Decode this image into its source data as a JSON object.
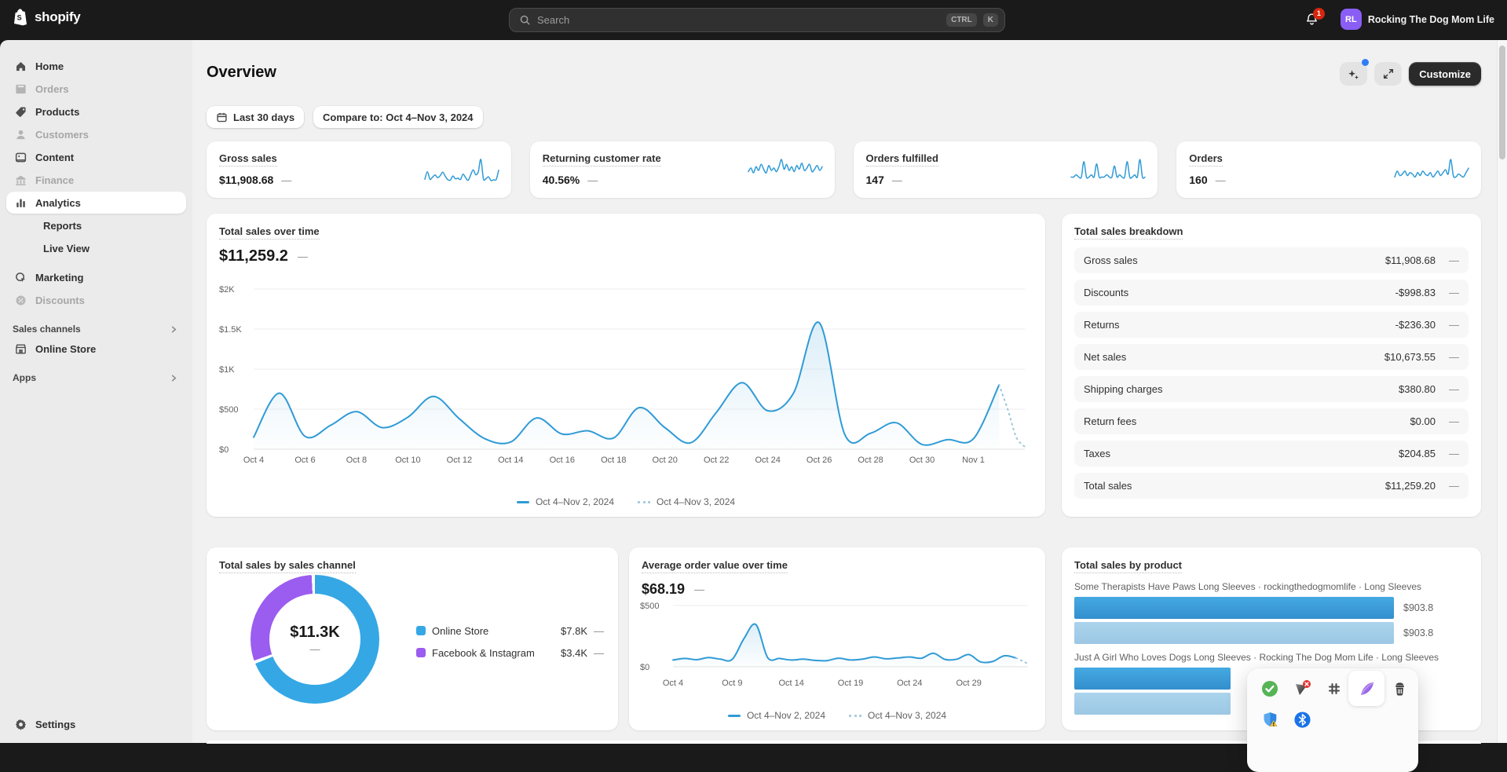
{
  "topbar": {
    "brand": "shopify",
    "search_placeholder": "Search",
    "shortcut_ctrl": "CTRL",
    "shortcut_k": "K",
    "notification_count": "1",
    "avatar_initials": "RL",
    "store_name": "Rocking The Dog Mom Life"
  },
  "sidebar": {
    "items": [
      {
        "label": "Home"
      },
      {
        "label": "Orders"
      },
      {
        "label": "Products"
      },
      {
        "label": "Customers"
      },
      {
        "label": "Content"
      },
      {
        "label": "Finance"
      },
      {
        "label": "Analytics"
      },
      {
        "label": "Reports"
      },
      {
        "label": "Live View"
      },
      {
        "label": "Marketing"
      },
      {
        "label": "Discounts"
      }
    ],
    "sales_channels_label": "Sales channels",
    "online_store_label": "Online Store",
    "apps_label": "Apps",
    "settings_label": "Settings"
  },
  "header": {
    "title": "Overview",
    "customize_label": "Customize"
  },
  "filters": {
    "date_range": "Last 30 days",
    "compare": "Compare to: Oct 4–Nov 3, 2024"
  },
  "metrics": [
    {
      "label": "Gross sales",
      "value": "$11,908.68",
      "trend": "—",
      "spark": [
        15,
        70,
        16,
        30,
        47,
        27,
        40,
        66,
        38,
        13,
        9,
        39,
        19,
        23,
        14,
        52,
        27,
        8,
        46,
        83,
        48,
        70,
        158,
        18,
        20,
        33,
        6,
        12,
        13,
        80
      ]
    },
    {
      "label": "Returning customer rate",
      "value": "40.56%",
      "trend": "—",
      "spark": [
        40,
        55,
        35,
        60,
        45,
        70,
        50,
        35,
        65,
        45,
        55,
        40,
        60,
        90,
        50,
        70,
        45,
        60,
        40,
        65,
        50,
        75,
        45,
        55,
        70,
        40,
        50,
        65,
        45,
        60
      ]
    },
    {
      "label": "Orders fulfilled",
      "value": "147",
      "trend": "—",
      "spark": [
        2,
        2,
        3,
        2,
        2,
        9,
        2,
        2,
        3,
        2,
        8,
        2,
        2,
        2,
        3,
        2,
        2,
        7,
        2,
        3,
        2,
        2,
        9,
        2,
        2,
        3,
        2,
        10,
        2,
        2
      ]
    },
    {
      "label": "Orders",
      "value": "160",
      "trend": "—",
      "spark": [
        3,
        7,
        4,
        5,
        7,
        4,
        6,
        5,
        3,
        6,
        4,
        7,
        5,
        4,
        6,
        3,
        5,
        7,
        4,
        6,
        8,
        5,
        15,
        4,
        3,
        5,
        4,
        3,
        6,
        9
      ]
    }
  ],
  "chart_data": {
    "sales_over_time": {
      "type": "line",
      "title": "Total sales over time",
      "value": "$11,259.2",
      "trend": "—",
      "y_max": 2000,
      "y_ticks": [
        {
          "label": "$2K",
          "v": 2000
        },
        {
          "label": "$1.5K",
          "v": 1500
        },
        {
          "label": "$1K",
          "v": 1000
        },
        {
          "label": "$500",
          "v": 500
        },
        {
          "label": "$0",
          "v": 0
        }
      ],
      "x_labels": [
        "Oct 4",
        "Oct 6",
        "Oct 8",
        "Oct 10",
        "Oct 12",
        "Oct 14",
        "Oct 16",
        "Oct 18",
        "Oct 20",
        "Oct 22",
        "Oct 24",
        "Oct 26",
        "Oct 28",
        "Oct 30",
        "Nov 1"
      ],
      "x_tick_every": 2,
      "values": [
        150,
        700,
        160,
        300,
        470,
        270,
        400,
        660,
        380,
        130,
        90,
        390,
        190,
        230,
        140,
        520,
        270,
        80,
        460,
        830,
        480,
        700,
        1580,
        180,
        200,
        330,
        60,
        120,
        130,
        805
      ],
      "projection": [
        500,
        150,
        30
      ],
      "legend": [
        {
          "label": "Oct 4–Nov 2, 2024",
          "style": "solid"
        },
        {
          "label": "Oct 4–Nov 3, 2024",
          "style": "dotted"
        }
      ]
    },
    "aov_over_time": {
      "type": "line",
      "title": "Average order value over time",
      "value": "$68.19",
      "trend": "—",
      "y_max": 500,
      "y_ticks": [
        {
          "label": "$500",
          "v": 500
        },
        {
          "label": "$0",
          "v": 0
        }
      ],
      "x_labels": [
        "Oct 4",
        "Oct 9",
        "Oct 14",
        "Oct 19",
        "Oct 24",
        "Oct 29"
      ],
      "x_tick_every": 5,
      "values": [
        55,
        68,
        58,
        75,
        62,
        60,
        230,
        345,
        75,
        68,
        55,
        62,
        52,
        50,
        70,
        55,
        62,
        80,
        65,
        72,
        80,
        70,
        110,
        60,
        62,
        100,
        40,
        42,
        90,
        72
      ],
      "projection": [
        25
      ],
      "legend": [
        {
          "label": "Oct 4–Nov 2, 2024",
          "style": "solid"
        },
        {
          "label": "Oct 4–Nov 3, 2024",
          "style": "dotted"
        }
      ]
    },
    "sales_by_channel": {
      "type": "donut",
      "title": "Total sales by sales channel",
      "total": "$11.3K",
      "trend": "—",
      "segments": [
        {
          "label": "Online Store",
          "value": 7800,
          "value_label": "$7.8K",
          "trend": "—",
          "color": "#35a7e5"
        },
        {
          "label": "Facebook & Instagram",
          "value": 3400,
          "value_label": "$3.4K",
          "trend": "—",
          "color": "#9b5cf0"
        }
      ]
    },
    "sales_by_product": {
      "type": "bar",
      "title": "Total sales by product",
      "max": 903.8,
      "items": [
        {
          "name": "Some Therapists Have Paws Long Sleeves · rockingthedogmomlife · Long Sleeves",
          "current": 903.8,
          "previous": 903.8,
          "current_label": "$903.8",
          "previous_label": "$903.8"
        },
        {
          "name": "Just A Girl Who Loves Dogs Long Sleeves · Rocking The Dog Mom Life · Long Sleeves",
          "current": 443,
          "previous": 443,
          "current_label": "",
          "previous_label": ""
        }
      ]
    }
  },
  "breakdown": {
    "title": "Total sales breakdown",
    "rows": [
      {
        "label": "Gross sales",
        "value": "$11,908.68",
        "trend": "—"
      },
      {
        "label": "Discounts",
        "value": "-$998.83",
        "trend": "—"
      },
      {
        "label": "Returns",
        "value": "-$236.30",
        "trend": "—"
      },
      {
        "label": "Net sales",
        "value": "$10,673.55",
        "trend": "—"
      },
      {
        "label": "Shipping charges",
        "value": "$380.80",
        "trend": "—"
      },
      {
        "label": "Return fees",
        "value": "$0.00",
        "trend": "—"
      },
      {
        "label": "Taxes",
        "value": "$204.85",
        "trend": "—"
      },
      {
        "label": "Total sales",
        "value": "$11,259.20",
        "trend": "—"
      }
    ]
  },
  "popup": {
    "icons": [
      "approved-check",
      "vpn-error",
      "extension-puzzle",
      "feather",
      "trash",
      "shield-warning",
      "bluetooth"
    ]
  }
}
